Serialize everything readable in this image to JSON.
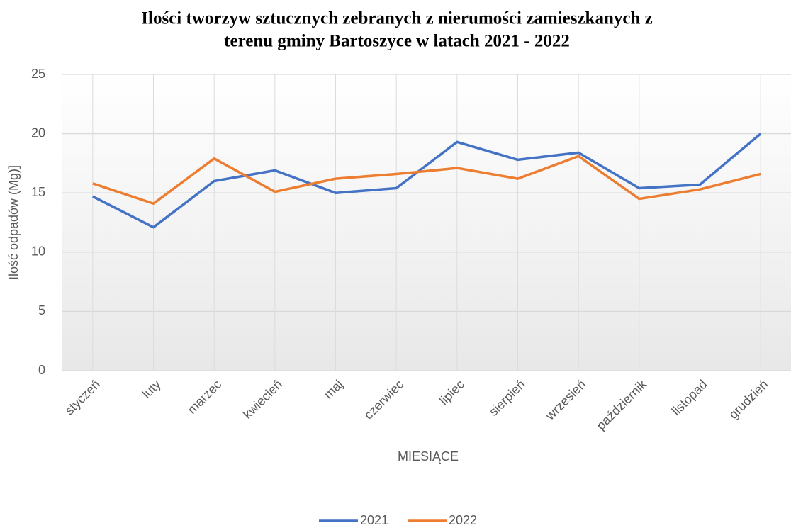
{
  "chart_data": {
    "type": "line",
    "title": [
      "Ilości tworzyw sztucznych zebranych z nierumości zamieszkanych z",
      "terenu gminy Bartoszyce w latach 2021 - 2022"
    ],
    "x_label": "MIESIĄCE",
    "y_label": "Ilość odpadów (Mg)]",
    "categories": [
      "styczeń",
      "luty",
      "marzec",
      "kwiecień",
      "maj",
      "czerwiec",
      "lipiec",
      "sierpień",
      "wrzesień",
      "październik",
      "listopad",
      "grudzień"
    ],
    "series": [
      {
        "name": "2021",
        "color": "#4472c4",
        "values": [
          14.7,
          12.1,
          16.0,
          16.9,
          15.0,
          15.4,
          19.3,
          17.8,
          18.4,
          15.4,
          15.7,
          20.0
        ]
      },
      {
        "name": "2022",
        "color": "#ed7d31",
        "values": [
          15.8,
          14.1,
          17.9,
          15.1,
          16.2,
          16.6,
          17.1,
          16.2,
          18.1,
          14.5,
          15.3,
          16.6
        ]
      }
    ],
    "ylim": [
      0,
      25
    ],
    "yticks": [
      0,
      5,
      10,
      15,
      20,
      25
    ],
    "grid": true,
    "legend": "bottom"
  }
}
